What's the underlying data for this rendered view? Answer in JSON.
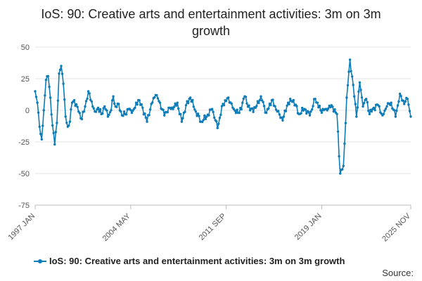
{
  "chart_data": {
    "type": "line",
    "title": "IoS: 90: Creative arts and entertainment activities: 3m on 3m growth",
    "xlabel": "",
    "ylabel": "",
    "ylim": [
      -75,
      50
    ],
    "yticks": [
      50,
      25,
      0,
      -25,
      -50,
      -75
    ],
    "x_start": "1997 JAN",
    "x_end": "2025 NOV",
    "x_ticks": [
      "1997 JAN",
      "2004 MAY",
      "2011 SEP",
      "2019 JAN",
      "2025 NOV"
    ],
    "grid": "horizontal",
    "legend_position": "bottom",
    "color": "#0e7cb8",
    "series": [
      {
        "name": "IoS: 90: Creative arts and entertainment activities: 3m on 3m growth",
        "anchors": [
          [
            "1997 JAN",
            15
          ],
          [
            "1997 MAR",
            6
          ],
          [
            "1997 MAY",
            -13
          ],
          [
            "1997 JUL",
            -23
          ],
          [
            "1997 SEP",
            0
          ],
          [
            "1997 NOV",
            24
          ],
          [
            "1998 JAN",
            27
          ],
          [
            "1998 MAR",
            10
          ],
          [
            "1998 MAY",
            -12
          ],
          [
            "1998 JUL",
            -27
          ],
          [
            "1998 SEP",
            -10
          ],
          [
            "1998 NOV",
            29
          ],
          [
            "1999 JAN",
            35
          ],
          [
            "1999 MAR",
            21
          ],
          [
            "1999 MAY",
            -5
          ],
          [
            "1999 JUL",
            -13
          ],
          [
            "1999 SEP",
            -9
          ],
          [
            "1999 NOV",
            6
          ],
          [
            "2000 JAN",
            8
          ],
          [
            "2000 MAY",
            -1
          ],
          [
            "2000 AUG",
            -7
          ],
          [
            "2000 NOV",
            3
          ],
          [
            "2001 FEB",
            15
          ],
          [
            "2001 MAY",
            7
          ],
          [
            "2001 AUG",
            -1
          ],
          [
            "2001 NOV",
            2
          ],
          [
            "2002 FEB",
            -3
          ],
          [
            "2002 MAY",
            3
          ],
          [
            "2002 AUG",
            -5
          ],
          [
            "2002 NOV",
            0
          ],
          [
            "2003 JAN",
            11
          ],
          [
            "2003 MAR",
            3
          ],
          [
            "2003 JUN",
            5
          ],
          [
            "2003 SEP",
            -4
          ],
          [
            "2003 DEC",
            -3
          ],
          [
            "2004 MAR",
            1
          ],
          [
            "2004 JUN",
            -2
          ],
          [
            "2004 SEP",
            2
          ],
          [
            "2004 DEC",
            8
          ],
          [
            "2005 APR",
            2
          ],
          [
            "2005 AUG",
            -9
          ],
          [
            "2005 DEC",
            5
          ],
          [
            "2006 APR",
            12
          ],
          [
            "2006 AUG",
            6
          ],
          [
            "2006 DEC",
            -4
          ],
          [
            "2007 APR",
            2
          ],
          [
            "2007 AUG",
            1
          ],
          [
            "2007 DEC",
            6
          ],
          [
            "2008 APR",
            -9
          ],
          [
            "2008 AUG",
            4
          ],
          [
            "2008 DEC",
            10
          ],
          [
            "2009 MAY",
            -1
          ],
          [
            "2009 OCT",
            -9
          ],
          [
            "2010 MAR",
            -5
          ],
          [
            "2010 AUG",
            1
          ],
          [
            "2011 JAN",
            -14
          ],
          [
            "2011 JUN",
            5
          ],
          [
            "2011 NOV",
            10
          ],
          [
            "2012 APR",
            1
          ],
          [
            "2012 SEP",
            -2
          ],
          [
            "2013 FEB",
            11
          ],
          [
            "2013 JUL",
            0
          ],
          [
            "2013 DEC",
            2
          ],
          [
            "2014 MAY",
            11
          ],
          [
            "2014 OCT",
            -2
          ],
          [
            "2015 MAR",
            8
          ],
          [
            "2015 AUG",
            -1
          ],
          [
            "2016 JAN",
            -8
          ],
          [
            "2016 JUN",
            6
          ],
          [
            "2016 NOV",
            8
          ],
          [
            "2017 APR",
            -3
          ],
          [
            "2017 SEP",
            1
          ],
          [
            "2018 FEB",
            -4
          ],
          [
            "2018 JUL",
            9
          ],
          [
            "2018 DEC",
            0
          ],
          [
            "2019 MAY",
            1
          ],
          [
            "2019 OCT",
            4
          ],
          [
            "2020 MAR",
            -3
          ],
          [
            "2020 JUN",
            -50
          ],
          [
            "2020 SEP",
            -44
          ],
          [
            "2020 DEC",
            10
          ],
          [
            "2021 MAR",
            40
          ],
          [
            "2021 JUN",
            20
          ],
          [
            "2021 SEP",
            -5
          ],
          [
            "2021 DEC",
            22
          ],
          [
            "2022 MAR",
            3
          ],
          [
            "2022 JUN",
            9
          ],
          [
            "2022 SEP",
            -3
          ],
          [
            "2023 JAN",
            2
          ],
          [
            "2023 MAY",
            4
          ],
          [
            "2023 SEP",
            -4
          ],
          [
            "2024 JAN",
            3
          ],
          [
            "2024 MAY",
            6
          ],
          [
            "2024 SEP",
            -5
          ],
          [
            "2025 JAN",
            13
          ],
          [
            "2025 MAY",
            5
          ],
          [
            "2025 AUG",
            9
          ],
          [
            "2025 NOV",
            -5
          ]
        ]
      }
    ]
  },
  "legend": {
    "label": "IoS: 90: Creative arts and entertainment activities: 3m on 3m growth"
  },
  "source": {
    "label": "Source:"
  }
}
